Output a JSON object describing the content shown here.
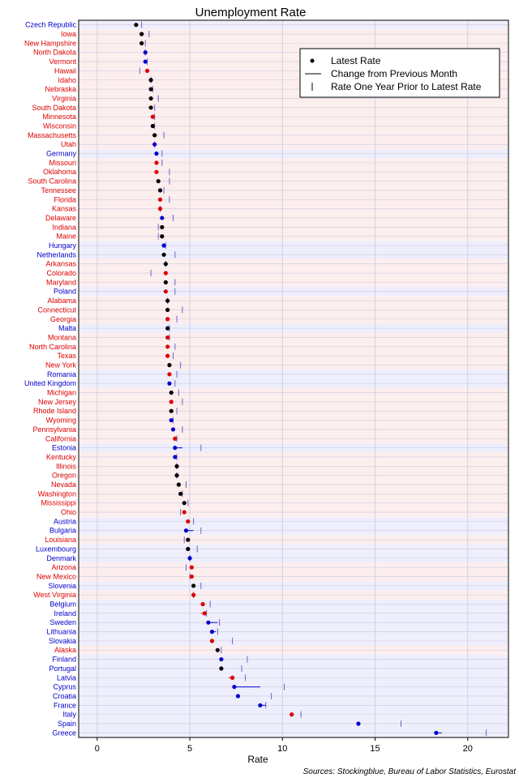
{
  "chart_data": {
    "type": "dot",
    "title": "Unemployment Rate",
    "xlabel": "Rate",
    "ylabel": "",
    "xlim": [
      -1,
      22.2
    ],
    "xticks": [
      0,
      5,
      10,
      15,
      20
    ],
    "grid": true,
    "legend": {
      "position": "top-right",
      "entries": [
        "Latest Rate",
        "Change from Previous Month",
        "Rate One Year Prior to Latest Rate"
      ]
    },
    "source": "Sources: Stockingblue, Bureau of Labor Statistics, Eurostat",
    "group_colors": {
      "us": "#dd0000",
      "eu": "#0000cc"
    },
    "row_fill": {
      "us": "#fdeeee",
      "eu": "#eeeefc"
    },
    "rows": [
      {
        "name": "Czech Republic",
        "group": "eu",
        "latest": 2.1,
        "prev": 2.2,
        "year_ago": 2.4,
        "dot": "#000000"
      },
      {
        "name": "Iowa",
        "group": "us",
        "latest": 2.4,
        "prev": 2.5,
        "year_ago": 2.8,
        "dot": "#000000"
      },
      {
        "name": "New Hampshire",
        "group": "us",
        "latest": 2.4,
        "prev": 2.5,
        "year_ago": 2.6,
        "dot": "#000000"
      },
      {
        "name": "North Dakota",
        "group": "us",
        "latest": 2.6,
        "prev": 2.6,
        "year_ago": 2.6,
        "dot": "#0000cc"
      },
      {
        "name": "Vermont",
        "group": "us",
        "latest": 2.6,
        "prev": 2.7,
        "year_ago": 2.7,
        "dot": "#0000cc"
      },
      {
        "name": "Hawaii",
        "group": "us",
        "latest": 2.7,
        "prev": 2.7,
        "year_ago": 2.3,
        "dot": "#dd0000"
      },
      {
        "name": "Idaho",
        "group": "us",
        "latest": 2.9,
        "prev": 2.9,
        "year_ago": 2.9,
        "dot": "#000000"
      },
      {
        "name": "Nebraska",
        "group": "us",
        "latest": 2.9,
        "prev": 2.9,
        "year_ago": 3.0,
        "dot": "#000000"
      },
      {
        "name": "Virginia",
        "group": "us",
        "latest": 2.9,
        "prev": 2.9,
        "year_ago": 3.3,
        "dot": "#000000"
      },
      {
        "name": "South Dakota",
        "group": "us",
        "latest": 2.9,
        "prev": 3.0,
        "year_ago": 3.1,
        "dot": "#000000"
      },
      {
        "name": "Minnesota",
        "group": "us",
        "latest": 3.0,
        "prev": 3.0,
        "year_ago": 3.1,
        "dot": "#dd0000"
      },
      {
        "name": "Wisconsin",
        "group": "us",
        "latest": 3.0,
        "prev": 3.0,
        "year_ago": 3.1,
        "dot": "#000000"
      },
      {
        "name": "Massachusetts",
        "group": "us",
        "latest": 3.1,
        "prev": 3.1,
        "year_ago": 3.6,
        "dot": "#000000"
      },
      {
        "name": "Utah",
        "group": "us",
        "latest": 3.1,
        "prev": 3.2,
        "year_ago": 3.1,
        "dot": "#0000cc"
      },
      {
        "name": "Germany",
        "group": "eu",
        "latest": 3.2,
        "prev": 3.3,
        "year_ago": 3.5,
        "dot": "#0000cc"
      },
      {
        "name": "Missouri",
        "group": "us",
        "latest": 3.2,
        "prev": 3.2,
        "year_ago": 3.5,
        "dot": "#dd0000"
      },
      {
        "name": "Oklahoma",
        "group": "us",
        "latest": 3.2,
        "prev": 3.3,
        "year_ago": 3.9,
        "dot": "#dd0000"
      },
      {
        "name": "South Carolina",
        "group": "us",
        "latest": 3.3,
        "prev": 3.3,
        "year_ago": 3.9,
        "dot": "#000000"
      },
      {
        "name": "Tennessee",
        "group": "us",
        "latest": 3.4,
        "prev": 3.4,
        "year_ago": 3.6,
        "dot": "#000000"
      },
      {
        "name": "Florida",
        "group": "us",
        "latest": 3.4,
        "prev": 3.4,
        "year_ago": 3.9,
        "dot": "#dd0000"
      },
      {
        "name": "Kansas",
        "group": "us",
        "latest": 3.4,
        "prev": 3.5,
        "year_ago": 3.4,
        "dot": "#dd0000"
      },
      {
        "name": "Delaware",
        "group": "us",
        "latest": 3.5,
        "prev": 3.6,
        "year_ago": 4.1,
        "dot": "#0000cc"
      },
      {
        "name": "Indiana",
        "group": "us",
        "latest": 3.5,
        "prev": 3.5,
        "year_ago": 3.3,
        "dot": "#000000"
      },
      {
        "name": "Maine",
        "group": "us",
        "latest": 3.5,
        "prev": 3.5,
        "year_ago": 3.3,
        "dot": "#000000"
      },
      {
        "name": "Hungary",
        "group": "eu",
        "latest": 3.6,
        "prev": 3.7,
        "year_ago": 3.7,
        "dot": "#0000cc"
      },
      {
        "name": "Netherlands",
        "group": "eu",
        "latest": 3.6,
        "prev": 3.7,
        "year_ago": 4.2,
        "dot": "#000000"
      },
      {
        "name": "Arkansas",
        "group": "us",
        "latest": 3.7,
        "prev": 3.7,
        "year_ago": 3.7,
        "dot": "#000000"
      },
      {
        "name": "Colorado",
        "group": "us",
        "latest": 3.7,
        "prev": 3.7,
        "year_ago": 2.9,
        "dot": "#dd0000"
      },
      {
        "name": "Maryland",
        "group": "us",
        "latest": 3.7,
        "prev": 3.8,
        "year_ago": 4.2,
        "dot": "#000000"
      },
      {
        "name": "Poland",
        "group": "eu",
        "latest": 3.7,
        "prev": 3.8,
        "year_ago": 4.2,
        "dot": "#dd0000"
      },
      {
        "name": "Alabama",
        "group": "us",
        "latest": 3.8,
        "prev": 3.8,
        "year_ago": 3.8,
        "dot": "#000000"
      },
      {
        "name": "Connecticut",
        "group": "us",
        "latest": 3.8,
        "prev": 3.9,
        "year_ago": 4.6,
        "dot": "#000000"
      },
      {
        "name": "Georgia",
        "group": "us",
        "latest": 3.8,
        "prev": 3.9,
        "year_ago": 4.3,
        "dot": "#dd0000"
      },
      {
        "name": "Malta",
        "group": "eu",
        "latest": 3.8,
        "prev": 3.8,
        "year_ago": 3.9,
        "dot": "#000000"
      },
      {
        "name": "Montana",
        "group": "us",
        "latest": 3.8,
        "prev": 3.8,
        "year_ago": 3.9,
        "dot": "#dd0000"
      },
      {
        "name": "North Carolina",
        "group": "us",
        "latest": 3.8,
        "prev": 3.9,
        "year_ago": 4.2,
        "dot": "#dd0000"
      },
      {
        "name": "Texas",
        "group": "us",
        "latest": 3.8,
        "prev": 3.9,
        "year_ago": 4.1,
        "dot": "#dd0000"
      },
      {
        "name": "New York",
        "group": "us",
        "latest": 3.9,
        "prev": 3.9,
        "year_ago": 4.5,
        "dot": "#000000"
      },
      {
        "name": "Romania",
        "group": "eu",
        "latest": 3.9,
        "prev": 4.0,
        "year_ago": 4.3,
        "dot": "#dd0000"
      },
      {
        "name": "United Kingdom",
        "group": "eu",
        "latest": 3.9,
        "prev": 4.0,
        "year_ago": 4.2,
        "dot": "#0000cc"
      },
      {
        "name": "Michigan",
        "group": "us",
        "latest": 4.0,
        "prev": 4.0,
        "year_ago": 4.4,
        "dot": "#000000"
      },
      {
        "name": "New Jersey",
        "group": "us",
        "latest": 4.0,
        "prev": 4.1,
        "year_ago": 4.6,
        "dot": "#dd0000"
      },
      {
        "name": "Rhode Island",
        "group": "us",
        "latest": 4.0,
        "prev": 4.0,
        "year_ago": 4.3,
        "dot": "#000000"
      },
      {
        "name": "Wyoming",
        "group": "us",
        "latest": 4.0,
        "prev": 4.1,
        "year_ago": 4.1,
        "dot": "#0000cc"
      },
      {
        "name": "Pennsylvania",
        "group": "us",
        "latest": 4.1,
        "prev": 4.1,
        "year_ago": 4.6,
        "dot": "#0000cc"
      },
      {
        "name": "California",
        "group": "us",
        "latest": 4.2,
        "prev": 4.2,
        "year_ago": 4.3,
        "dot": "#dd0000"
      },
      {
        "name": "Estonia",
        "group": "eu",
        "latest": 4.2,
        "prev": 4.6,
        "year_ago": 5.6,
        "dot": "#0000cc"
      },
      {
        "name": "Kentucky",
        "group": "us",
        "latest": 4.2,
        "prev": 4.2,
        "year_ago": 4.3,
        "dot": "#0000cc"
      },
      {
        "name": "Illinois",
        "group": "us",
        "latest": 4.3,
        "prev": 4.3,
        "year_ago": 4.3,
        "dot": "#000000"
      },
      {
        "name": "Oregon",
        "group": "us",
        "latest": 4.3,
        "prev": 4.3,
        "year_ago": 4.3,
        "dot": "#000000"
      },
      {
        "name": "Nevada",
        "group": "us",
        "latest": 4.4,
        "prev": 4.4,
        "year_ago": 4.8,
        "dot": "#000000"
      },
      {
        "name": "Washington",
        "group": "us",
        "latest": 4.5,
        "prev": 4.5,
        "year_ago": 4.6,
        "dot": "#000000"
      },
      {
        "name": "Mississippi",
        "group": "us",
        "latest": 4.7,
        "prev": 4.7,
        "year_ago": 4.9,
        "dot": "#000000"
      },
      {
        "name": "Ohio",
        "group": "us",
        "latest": 4.7,
        "prev": 4.6,
        "year_ago": 4.5,
        "dot": "#dd0000"
      },
      {
        "name": "Austria",
        "group": "eu",
        "latest": 4.9,
        "prev": 5.0,
        "year_ago": 5.2,
        "dot": "#dd0000"
      },
      {
        "name": "Bulgaria",
        "group": "eu",
        "latest": 4.8,
        "prev": 5.2,
        "year_ago": 5.6,
        "dot": "#0000cc"
      },
      {
        "name": "Louisiana",
        "group": "us",
        "latest": 4.9,
        "prev": 4.8,
        "year_ago": 4.7,
        "dot": "#000000"
      },
      {
        "name": "Luxembourg",
        "group": "eu",
        "latest": 4.9,
        "prev": 4.9,
        "year_ago": 5.4,
        "dot": "#000000"
      },
      {
        "name": "Denmark",
        "group": "eu",
        "latest": 5.0,
        "prev": 5.0,
        "year_ago": 5.0,
        "dot": "#0000cc"
      },
      {
        "name": "Arizona",
        "group": "us",
        "latest": 5.1,
        "prev": 5.1,
        "year_ago": 4.8,
        "dot": "#dd0000"
      },
      {
        "name": "New Mexico",
        "group": "us",
        "latest": 5.1,
        "prev": 5.1,
        "year_ago": 5.0,
        "dot": "#dd0000"
      },
      {
        "name": "Slovenia",
        "group": "eu",
        "latest": 5.2,
        "prev": 5.2,
        "year_ago": 5.6,
        "dot": "#000000"
      },
      {
        "name": "West Virginia",
        "group": "us",
        "latest": 5.2,
        "prev": 5.3,
        "year_ago": 5.2,
        "dot": "#dd0000"
      },
      {
        "name": "Belgium",
        "group": "eu",
        "latest": 5.7,
        "prev": 5.7,
        "year_ago": 6.1,
        "dot": "#dd0000"
      },
      {
        "name": "Ireland",
        "group": "eu",
        "latest": 5.8,
        "prev": 5.6,
        "year_ago": 5.9,
        "dot": "#dd0000"
      },
      {
        "name": "Sweden",
        "group": "eu",
        "latest": 6.0,
        "prev": 6.5,
        "year_ago": 6.6,
        "dot": "#0000cc"
      },
      {
        "name": "Lithuania",
        "group": "eu",
        "latest": 6.2,
        "prev": 6.4,
        "year_ago": 6.5,
        "dot": "#0000cc"
      },
      {
        "name": "Slovakia",
        "group": "eu",
        "latest": 6.2,
        "prev": 6.3,
        "year_ago": 7.3,
        "dot": "#dd0000"
      },
      {
        "name": "Alaska",
        "group": "us",
        "latest": 6.5,
        "prev": 6.6,
        "year_ago": 6.7,
        "dot": "#000000"
      },
      {
        "name": "Finland",
        "group": "eu",
        "latest": 6.7,
        "prev": 6.7,
        "year_ago": 8.1,
        "dot": "#0000cc"
      },
      {
        "name": "Portugal",
        "group": "eu",
        "latest": 6.7,
        "prev": 6.7,
        "year_ago": 7.8,
        "dot": "#000000"
      },
      {
        "name": "Latvia",
        "group": "eu",
        "latest": 7.3,
        "prev": 7.1,
        "year_ago": 8.0,
        "dot": "#dd0000"
      },
      {
        "name": "Cyprus",
        "group": "eu",
        "latest": 7.4,
        "prev": 8.8,
        "year_ago": 10.1,
        "dot": "#0000cc"
      },
      {
        "name": "Croatia",
        "group": "eu",
        "latest": 7.6,
        "prev": 7.6,
        "year_ago": 9.4,
        "dot": "#0000cc"
      },
      {
        "name": "France",
        "group": "eu",
        "latest": 8.8,
        "prev": 9.1,
        "year_ago": 9.1,
        "dot": "#0000cc"
      },
      {
        "name": "Italy",
        "group": "eu",
        "latest": 10.5,
        "prev": 10.6,
        "year_ago": 11.0,
        "dot": "#dd0000"
      },
      {
        "name": "Spain",
        "group": "eu",
        "latest": 14.1,
        "prev": 14.2,
        "year_ago": 16.4,
        "dot": "#0000cc"
      },
      {
        "name": "Greece",
        "group": "eu",
        "latest": 18.3,
        "prev": 18.6,
        "year_ago": 21.0,
        "dot": "#0000cc"
      }
    ]
  }
}
